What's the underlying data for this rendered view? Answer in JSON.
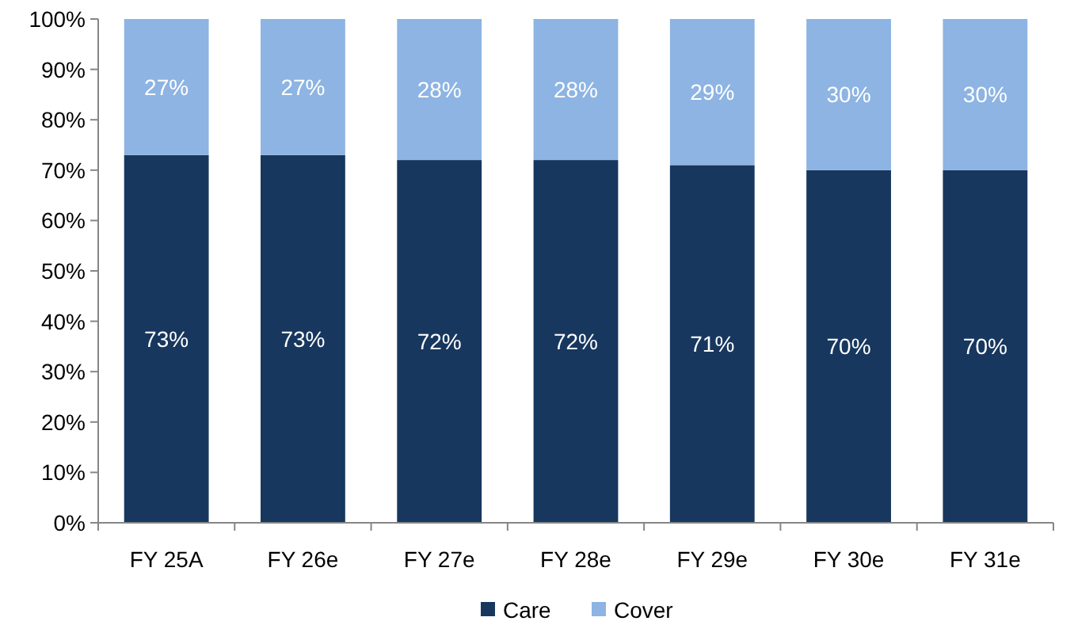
{
  "chart_data": {
    "type": "bar",
    "stacked": true,
    "categories": [
      "FY 25A",
      "FY 26e",
      "FY 27e",
      "FY 28e",
      "FY 29e",
      "FY 30e",
      "FY 31e"
    ],
    "series": [
      {
        "name": "Care",
        "color": "#17375e",
        "values": [
          73,
          73,
          72,
          72,
          71,
          70,
          70
        ],
        "value_labels": [
          "73%",
          "73%",
          "72%",
          "72%",
          "71%",
          "70%",
          "70%"
        ]
      },
      {
        "name": "Cover",
        "color": "#8db4e2",
        "values": [
          27,
          27,
          28,
          28,
          29,
          30,
          30
        ],
        "value_labels": [
          "27%",
          "27%",
          "28%",
          "28%",
          "29%",
          "30%",
          "30%"
        ]
      }
    ],
    "ylim": [
      0,
      100
    ],
    "yticks": [
      {
        "value": 0,
        "label": "0%"
      },
      {
        "value": 10,
        "label": "10%"
      },
      {
        "value": 20,
        "label": "20%"
      },
      {
        "value": 30,
        "label": "30%"
      },
      {
        "value": 40,
        "label": "40%"
      },
      {
        "value": 50,
        "label": "50%"
      },
      {
        "value": 60,
        "label": "60%"
      },
      {
        "value": 70,
        "label": "70%"
      },
      {
        "value": 80,
        "label": "80%"
      },
      {
        "value": 90,
        "label": "90%"
      },
      {
        "value": 100,
        "label": "100%"
      }
    ],
    "legend": "bottom",
    "grid": false
  }
}
